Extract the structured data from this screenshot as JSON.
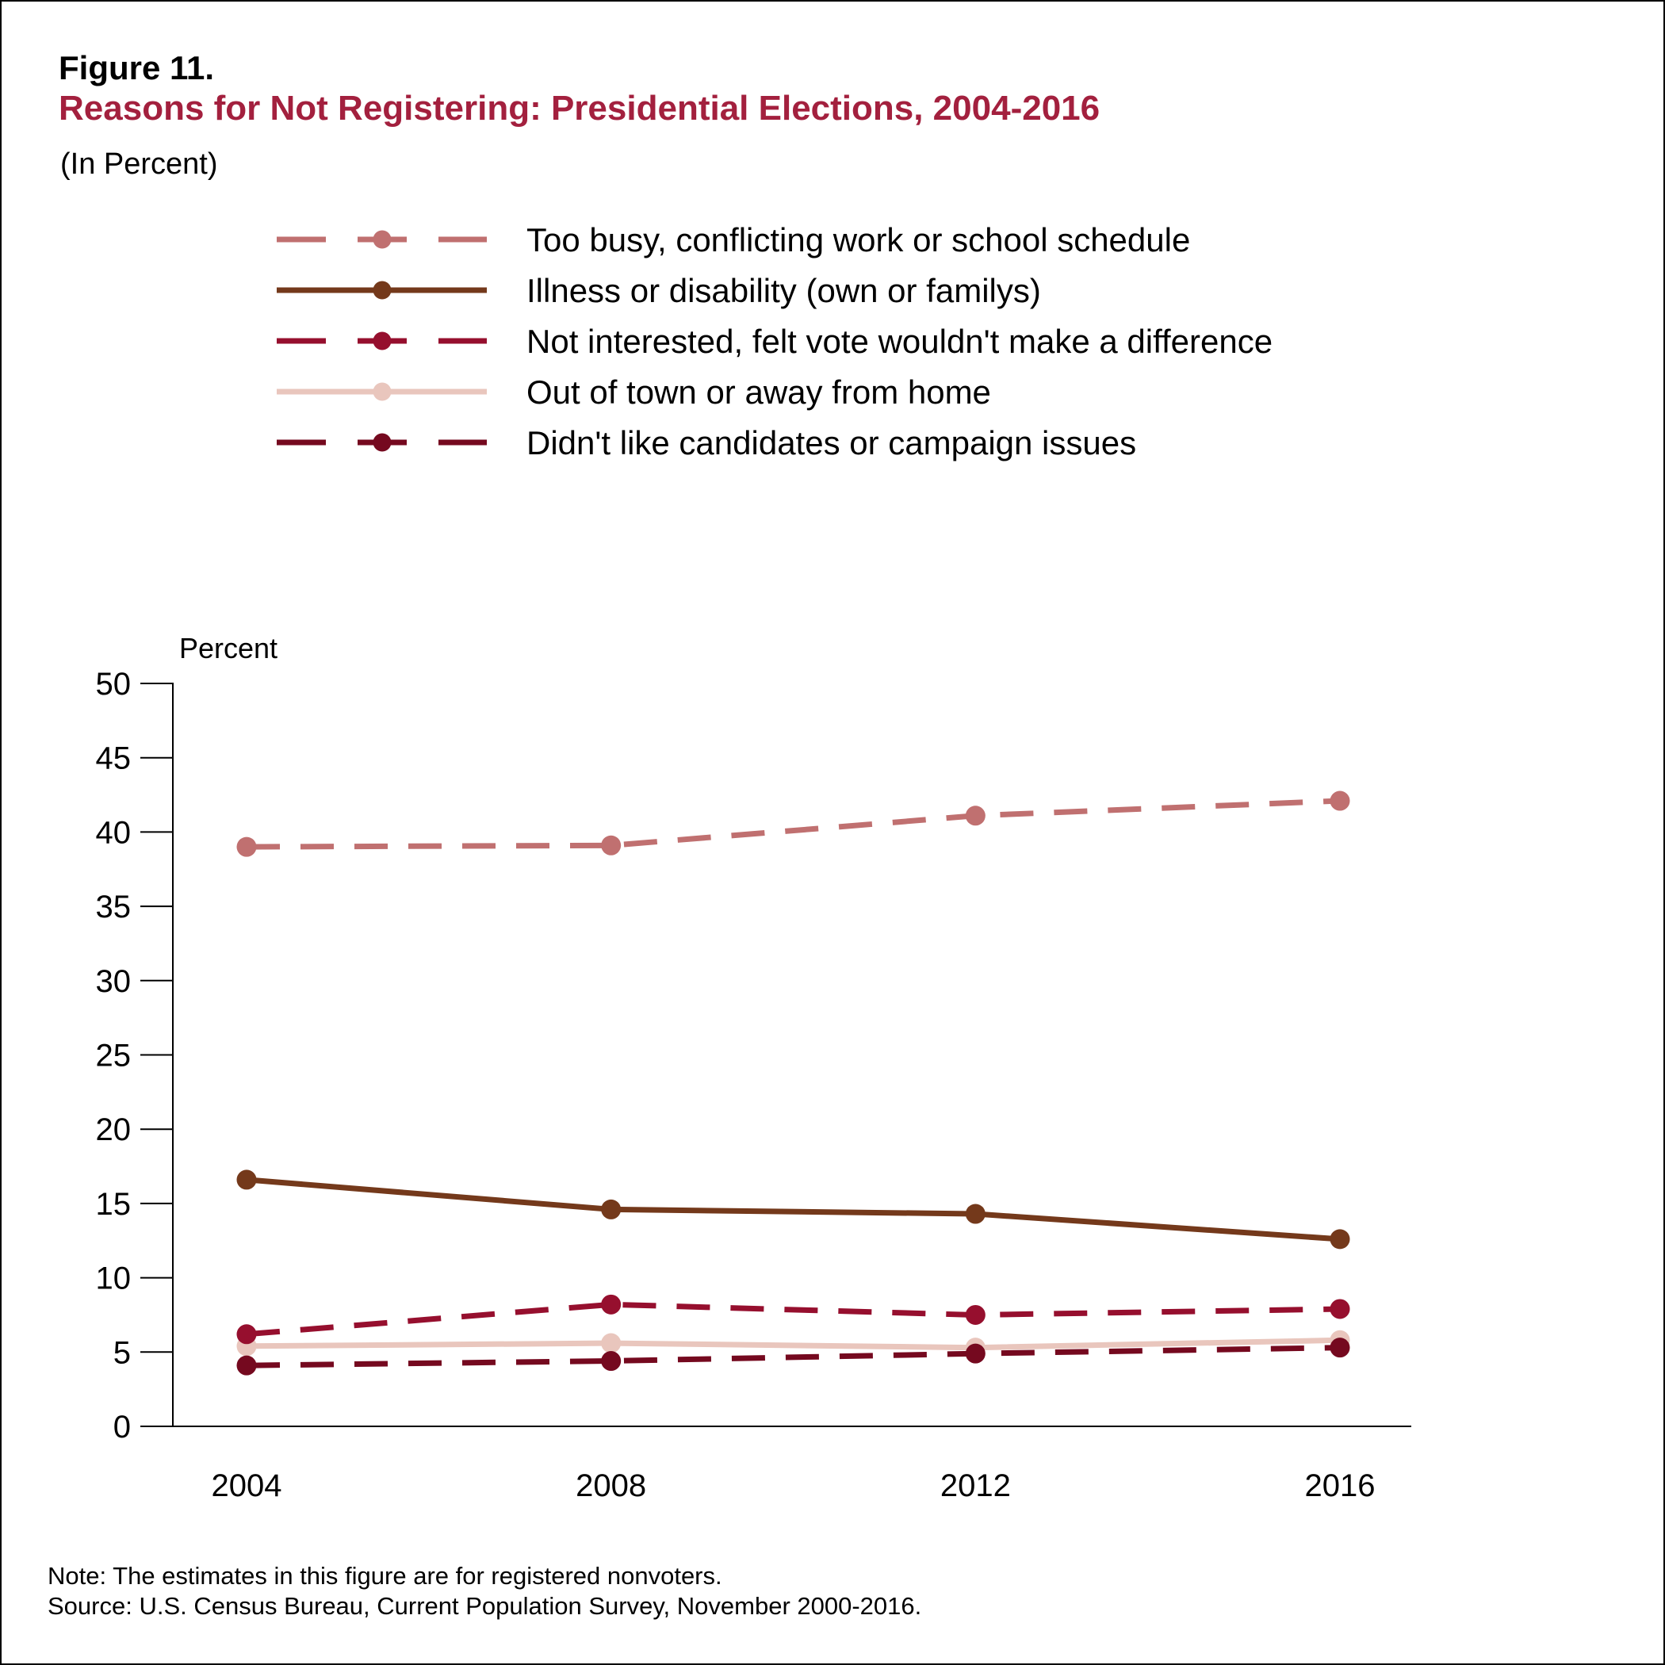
{
  "figure_label": "Figure 11.",
  "title": "Reasons for Not Registering: Presidential Elections, 2004-2016",
  "subtitle": "(In Percent)",
  "notes": [
    "Note: The estimates in this figure are for registered nonvoters.",
    "Source: U.S. Census Bureau, Current Population Survey, November 2000-2016."
  ],
  "chart_data": {
    "type": "line",
    "title": "Reasons for Not Registering: Presidential Elections, 2004-2016",
    "xlabel": "",
    "ylabel": "Percent",
    "x": [
      "2004",
      "2008",
      "2012",
      "2016"
    ],
    "ylim": [
      0,
      50
    ],
    "yticks": [
      0,
      5,
      10,
      15,
      20,
      25,
      30,
      35,
      40,
      45,
      50
    ],
    "grid": false,
    "legend_position": "top",
    "series": [
      {
        "name": "Too busy, conflicting work or school schedule",
        "values": [
          39.0,
          39.1,
          41.1,
          42.1
        ],
        "color": "#c07070",
        "dashed": true
      },
      {
        "name": "Illness or disability (own or familys)",
        "values": [
          16.6,
          14.6,
          14.3,
          12.6
        ],
        "color": "#74391b",
        "dashed": false
      },
      {
        "name": "Not interested, felt vote wouldn't make a difference",
        "values": [
          6.2,
          8.2,
          7.5,
          7.9
        ],
        "color": "#960f2e",
        "dashed": true
      },
      {
        "name": "Out of town or away from home",
        "values": [
          5.4,
          5.6,
          5.3,
          5.8
        ],
        "color": "#e9c6bd",
        "dashed": false
      },
      {
        "name": "Didn't like candidates or campaign issues",
        "values": [
          4.1,
          4.4,
          4.9,
          5.3
        ],
        "color": "#75091f",
        "dashed": true
      }
    ]
  }
}
